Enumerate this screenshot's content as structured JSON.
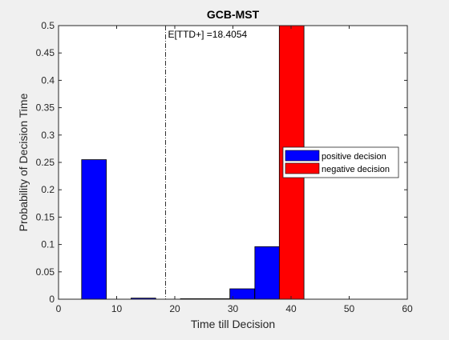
{
  "chart_data": {
    "type": "bar",
    "title": "GCB-MST",
    "xlabel": "Time till Decision",
    "ylabel": "Probability of Decision Time",
    "xlim": [
      0,
      60
    ],
    "ylim": [
      0,
      0.5
    ],
    "xticks": [
      "0",
      "10",
      "20",
      "30",
      "40",
      "50",
      "60"
    ],
    "yticks": [
      "0",
      "0.05",
      "0.1",
      "0.15",
      "0.2",
      "0.25",
      "0.3",
      "0.35",
      "0.4",
      "0.45",
      "0.5"
    ],
    "bin_width": 4.25,
    "series": [
      {
        "name": "positive decision",
        "color": "#0000ff",
        "x": [
          6.1,
          14.6,
          23.1,
          27.4,
          31.6,
          35.9
        ],
        "values": [
          0.255,
          0.002,
          0.001,
          0.001,
          0.019,
          0.096
        ]
      },
      {
        "name": "negative decision",
        "color": "#ff0000",
        "x": [
          40.1
        ],
        "values": [
          0.5
        ]
      }
    ],
    "vline": {
      "x": 18.4054,
      "style": "dash-dot",
      "label": "E[TTD+] =18.4054"
    },
    "legend_position": "center-right",
    "grid": false
  }
}
